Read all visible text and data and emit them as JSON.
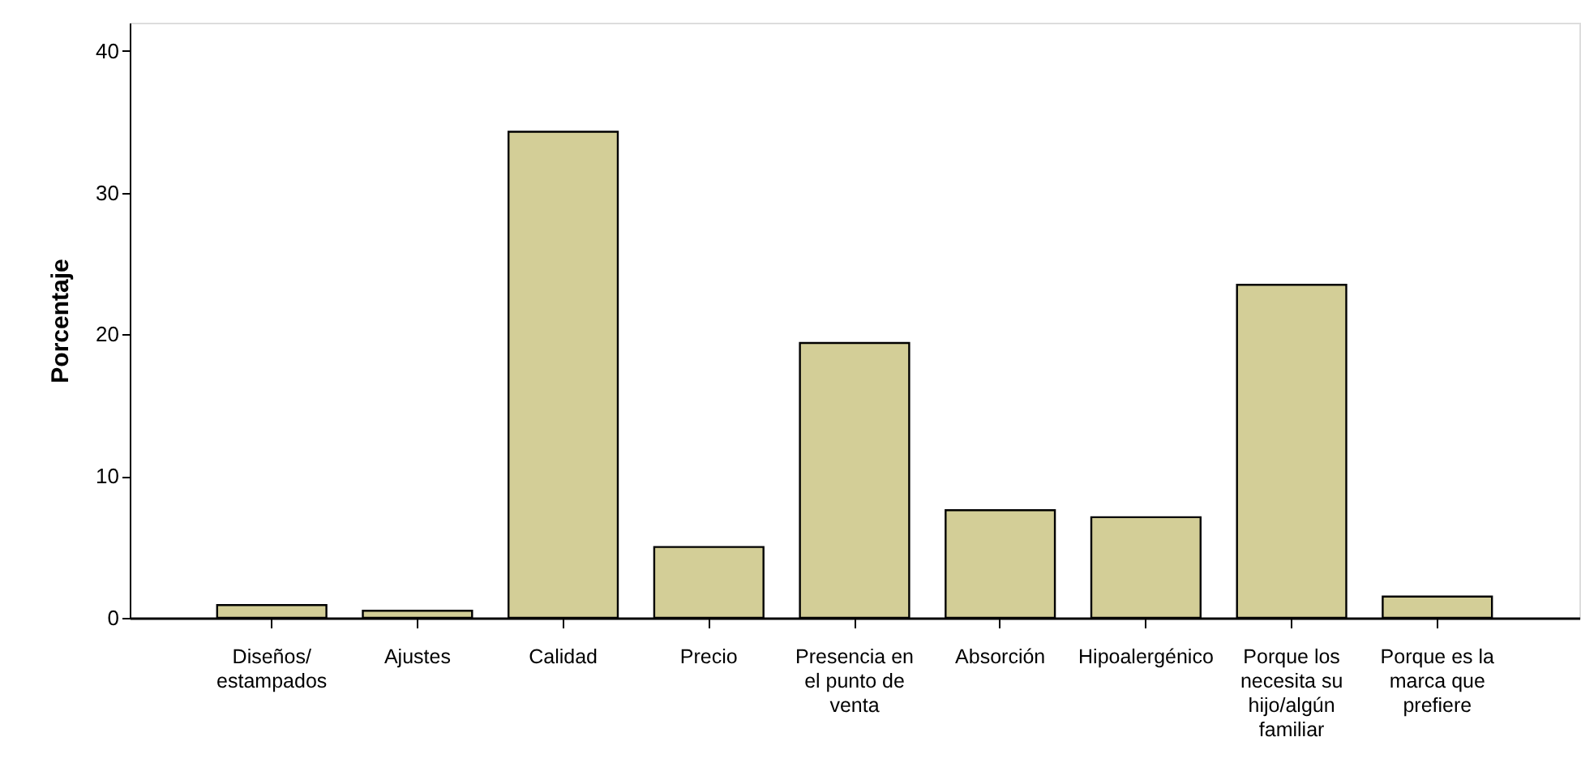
{
  "chart_data": {
    "type": "bar",
    "ylabel": "Porcentaje",
    "categories": [
      "Diseños/estampados",
      "Ajustes",
      "Calidad",
      "Precio",
      "Presencia en el punto de venta",
      "Absorción",
      "Hipoalergénico",
      "Porque los necesita su hijo/algún familiar",
      "Porque es la marca que prefiere"
    ],
    "values": [
      0.9,
      0.5,
      34.3,
      5.0,
      19.4,
      7.6,
      7.1,
      23.5,
      1.5
    ],
    "color": "#d3ce97",
    "ylim": [
      0,
      42
    ],
    "yticks": [
      0,
      10,
      20,
      30,
      40
    ],
    "grid": false
  }
}
